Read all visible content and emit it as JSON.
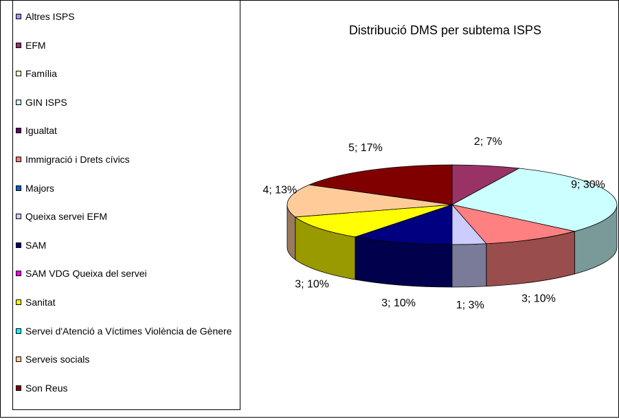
{
  "chart_data": {
    "type": "pie3d",
    "title": "Distribució DMS per subtema ISPS",
    "categories": [
      "Altres ISPS",
      "EFM",
      "Família",
      "GIN ISPS",
      "Igualtat",
      "Immigració i Drets cívics",
      "Majors",
      "Queixa servei EFM",
      "SAM",
      "SAM VDG Queixa del servei",
      "Sanitat",
      "Servei d'Atenció a Víctimes Violència de Gènere",
      "Serveis socials",
      "Son Reus"
    ],
    "values": [
      0,
      2,
      0,
      9,
      0,
      3,
      0,
      1,
      3,
      0,
      3,
      0,
      4,
      5
    ],
    "value_labels": [
      null,
      "2; 7%",
      null,
      "9; 30%",
      null,
      "3; 10%",
      null,
      "1; 3%",
      "3; 10%",
      null,
      "3; 10%",
      null,
      "4; 13%",
      "5; 17%"
    ],
    "colors": [
      "#9999FF",
      "#993366",
      "#FFFFCC",
      "#CCFFFF",
      "#660066",
      "#FF8080",
      "#0066CC",
      "#CCCCFF",
      "#000080",
      "#FF00FF",
      "#FFFF00",
      "#00FFFF",
      "#FFCC99",
      "#800000"
    ],
    "legend": "left"
  }
}
